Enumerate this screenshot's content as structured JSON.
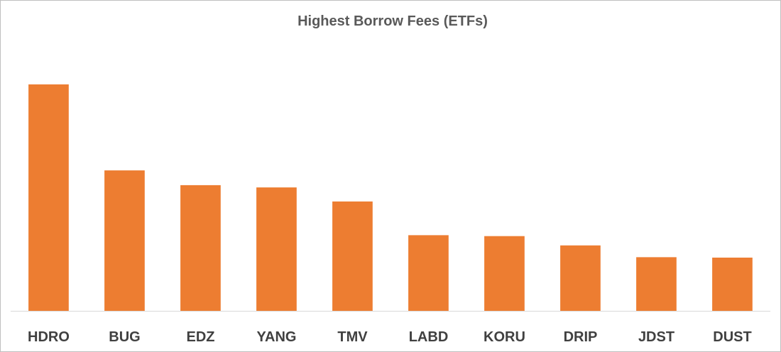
{
  "chart_data": {
    "type": "bar",
    "title": "Highest Borrow Fees (ETFs)",
    "xlabel": "",
    "ylabel": "",
    "categories": [
      "HDRO",
      "BUG",
      "EDZ",
      "YANG",
      "TMV",
      "LABD",
      "KORU",
      "DRIP",
      "JDST",
      "DUST"
    ],
    "values": [
      100,
      62,
      55.5,
      54.5,
      48.3,
      33.4,
      33,
      28.9,
      23.7,
      23.5
    ],
    "ylim": [
      0,
      115
    ],
    "grid": false,
    "legend": "none",
    "y_axis_visible": false,
    "bar_color": "#ED7D31",
    "axis_color": "#d9d9d9"
  }
}
